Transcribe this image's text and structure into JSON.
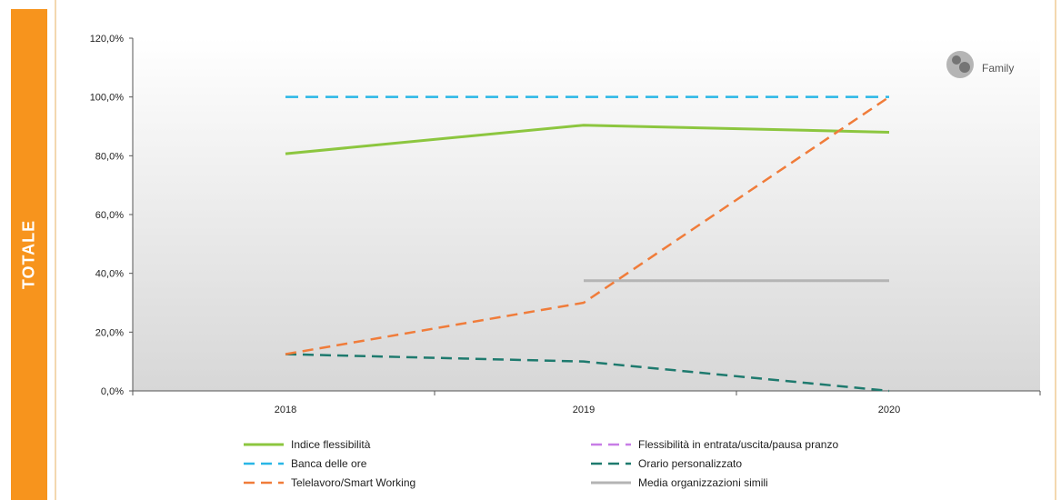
{
  "side_label": "TOTALE",
  "logo": {
    "text": "Family"
  },
  "colors": {
    "orange_band": "#f7941d",
    "indice": "#8cc63f",
    "banca": "#29b6e6",
    "telelavoro": "#f07c3a",
    "flessibilita": "#c77de6",
    "orario": "#1e7a6e",
    "media": "#b4b4b4"
  },
  "chart_data": {
    "type": "line",
    "x": [
      "2018",
      "2019",
      "2020"
    ],
    "ylim": [
      0,
      120
    ],
    "y_ticks": [
      "0,0%",
      "20,0%",
      "40,0%",
      "60,0%",
      "80,0%",
      "100,0%",
      "120,0%"
    ],
    "grid": false,
    "legend_position": "bottom",
    "series": [
      {
        "name": "Indice flessibilità",
        "values": [
          80.7,
          90.4,
          88.0
        ],
        "style": "solid",
        "color": "#8cc63f"
      },
      {
        "name": "Flessibilità in entrata/uscita/pausa pranzo",
        "values": [
          null,
          null,
          null
        ],
        "style": "dashed",
        "color": "#c77de6"
      },
      {
        "name": "Banca delle ore",
        "values": [
          100,
          100,
          100
        ],
        "style": "dashed",
        "color": "#29b6e6"
      },
      {
        "name": "Orario personalizzato",
        "values": [
          12.5,
          10.0,
          0.0
        ],
        "style": "dashed",
        "color": "#1e7a6e"
      },
      {
        "name": "Telelavoro/Smart Working",
        "values": [
          12.5,
          30.0,
          100.0
        ],
        "style": "dashed",
        "color": "#f07c3a"
      },
      {
        "name": "Media organizzazioni simili",
        "values": [
          null,
          37.5,
          37.5
        ],
        "style": "solid",
        "color": "#b4b4b4"
      }
    ]
  }
}
